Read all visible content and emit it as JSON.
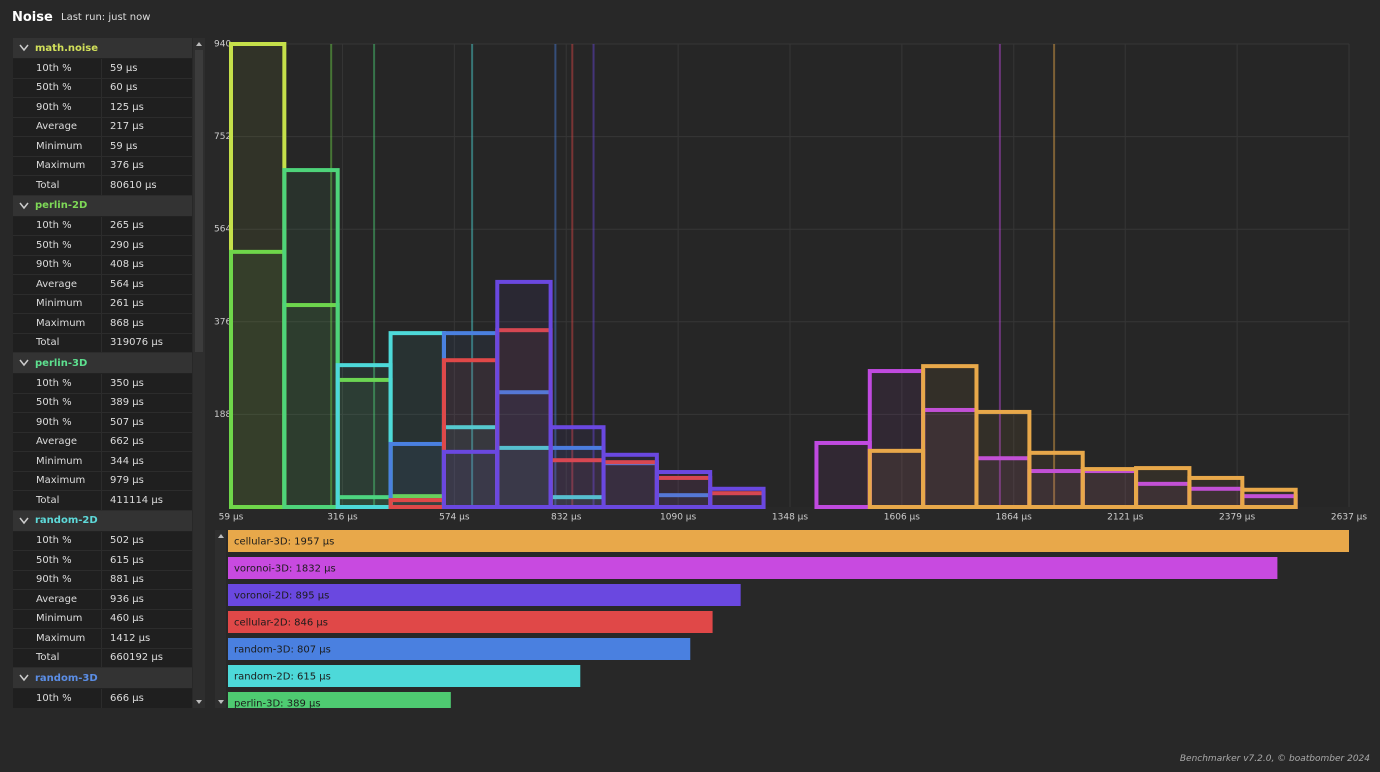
{
  "header": {
    "title": "Noise",
    "status": "Last run: just now"
  },
  "sidebar": {
    "groups": [
      {
        "color": "#d2e05a",
        "rows": [
          [
            "10th %",
            "59 µs"
          ],
          [
            "50th %",
            "60 µs"
          ],
          [
            "90th %",
            "125 µs"
          ],
          [
            "Average",
            "217 µs"
          ],
          [
            "Minimum",
            "59 µs"
          ],
          [
            "Maximum",
            "376 µs"
          ],
          [
            "Total",
            "80610 µs"
          ]
        ]
      },
      {
        "color": "#7ed957",
        "rows": [
          [
            "10th %",
            "265 µs"
          ],
          [
            "50th %",
            "290 µs"
          ],
          [
            "90th %",
            "408 µs"
          ],
          [
            "Average",
            "564 µs"
          ],
          [
            "Minimum",
            "261 µs"
          ],
          [
            "Maximum",
            "868 µs"
          ],
          [
            "Total",
            "319076 µs"
          ]
        ]
      },
      {
        "color": "#5de08f",
        "rows": [
          [
            "10th %",
            "350 µs"
          ],
          [
            "50th %",
            "389 µs"
          ],
          [
            "90th %",
            "507 µs"
          ],
          [
            "Average",
            "662 µs"
          ],
          [
            "Minimum",
            "344 µs"
          ],
          [
            "Maximum",
            "979 µs"
          ],
          [
            "Total",
            "411114 µs"
          ]
        ]
      },
      {
        "color": "#5ed9d9",
        "rows": [
          [
            "10th %",
            "502 µs"
          ],
          [
            "50th %",
            "615 µs"
          ],
          [
            "90th %",
            "881 µs"
          ],
          [
            "Average",
            "936 µs"
          ],
          [
            "Minimum",
            "460 µs"
          ],
          [
            "Maximum",
            "1412 µs"
          ],
          [
            "Total",
            "660192 µs"
          ]
        ]
      },
      {
        "color": "#5b8ee6",
        "rows": [
          [
            "10th %",
            "666 µs"
          ]
        ]
      }
    ]
  },
  "chart_data": [
    {
      "type": "histogram",
      "bins": [
        59,
        182,
        305,
        427,
        550,
        673,
        796,
        918,
        1041,
        1164,
        1287,
        1409,
        1532,
        1655,
        1778,
        1900,
        2023,
        2146,
        2269,
        2391,
        2514,
        2637
      ],
      "xlim": [
        59,
        2637
      ],
      "ylim": [
        0,
        940
      ],
      "xticks": [
        {
          "value": 59,
          "label": "59 µs"
        },
        {
          "value": 316,
          "label": "316 µs"
        },
        {
          "value": 574,
          "label": "574 µs"
        },
        {
          "value": 832,
          "label": "832 µs"
        },
        {
          "value": 1090,
          "label": "1090 µs"
        },
        {
          "value": 1348,
          "label": "1348 µs"
        },
        {
          "value": 1606,
          "label": "1606 µs"
        },
        {
          "value": 1864,
          "label": "1864 µs"
        },
        {
          "value": 2121,
          "label": "2121 µs"
        },
        {
          "value": 2379,
          "label": "2379 µs"
        },
        {
          "value": 2637,
          "label": "2637 µs"
        }
      ],
      "yticks": [
        188,
        376,
        564,
        752,
        940
      ],
      "grid": true,
      "series": [
        {
          "name": "math.noise",
          "color": "#c5e04a",
          "median": 60,
          "values": [
            940,
            0,
            0,
            0,
            0,
            0,
            0,
            0,
            0,
            0,
            0,
            0,
            0,
            0,
            0,
            0,
            0,
            0,
            0,
            0,
            0
          ]
        },
        {
          "name": "perlin-2D",
          "color": "#6fd64a",
          "median": 290,
          "values": [
            518,
            410,
            258,
            22,
            0,
            0,
            0,
            0,
            0,
            0,
            0,
            0,
            0,
            0,
            0,
            0,
            0,
            0,
            0,
            0,
            0
          ]
        },
        {
          "name": "perlin-3D",
          "color": "#4ed47a",
          "median": 389,
          "values": [
            0,
            684,
            20,
            0,
            0,
            0,
            0,
            0,
            0,
            0,
            0,
            0,
            0,
            0,
            0,
            0,
            0,
            0,
            0,
            0,
            0
          ]
        },
        {
          "name": "random-2D",
          "color": "#4dd9d9",
          "median": 615,
          "values": [
            0,
            0,
            288,
            353,
            162,
            120,
            20,
            0,
            0,
            0,
            0,
            0,
            0,
            0,
            0,
            0,
            0,
            0,
            0,
            0,
            0
          ]
        },
        {
          "name": "random-3D",
          "color": "#4a80e0",
          "median": 807,
          "values": [
            0,
            0,
            0,
            128,
            353,
            233,
            120,
            89,
            24,
            0,
            0,
            0,
            0,
            0,
            0,
            0,
            0,
            0,
            0,
            0,
            0
          ]
        },
        {
          "name": "cellular-2D",
          "color": "#e04848",
          "median": 846,
          "values": [
            0,
            0,
            0,
            14,
            298,
            359,
            95,
            91,
            59,
            28,
            0,
            0,
            0,
            0,
            0,
            0,
            0,
            0,
            0,
            0,
            0
          ]
        },
        {
          "name": "voronoi-2D",
          "color": "#6a48e0",
          "median": 895,
          "values": [
            0,
            0,
            0,
            0,
            112,
            457,
            162,
            106,
            71,
            37,
            0,
            0,
            0,
            0,
            0,
            0,
            0,
            0,
            0,
            0,
            0
          ]
        },
        {
          "name": "voronoi-3D",
          "color": "#c04ae0",
          "median": 1832,
          "values": [
            0,
            0,
            0,
            0,
            0,
            0,
            0,
            0,
            0,
            0,
            0,
            130,
            276,
            197,
            99,
            73,
            73,
            47,
            37,
            22,
            0
          ]
        },
        {
          "name": "cellular-3D",
          "color": "#e8a84a",
          "median": 1957,
          "values": [
            0,
            0,
            0,
            0,
            0,
            0,
            0,
            0,
            0,
            0,
            0,
            0,
            114,
            286,
            193,
            110,
            77,
            79,
            59,
            35,
            0
          ]
        }
      ]
    },
    {
      "type": "bar",
      "orientation": "horizontal",
      "xlim": [
        0,
        1957
      ],
      "values": [
        1957,
        1832,
        895,
        846,
        807,
        615,
        389
      ],
      "value_labels": [
        "cellular-3D: 1957 µs",
        "voronoi-3D: 1832 µs",
        "voronoi-2D: 895 µs",
        "cellular-2D: 846 µs",
        "random-3D: 807 µs",
        "random-2D: 615 µs",
        "perlin-3D: 389 µs"
      ],
      "colors": [
        "#e8a84a",
        "#c84ae0",
        "#6a48e0",
        "#e04848",
        "#4a80e0",
        "#4dd9d9",
        "#4ecb71"
      ]
    }
  ],
  "footer": "Benchmarker v7.2.0, © boatbomber 2024"
}
